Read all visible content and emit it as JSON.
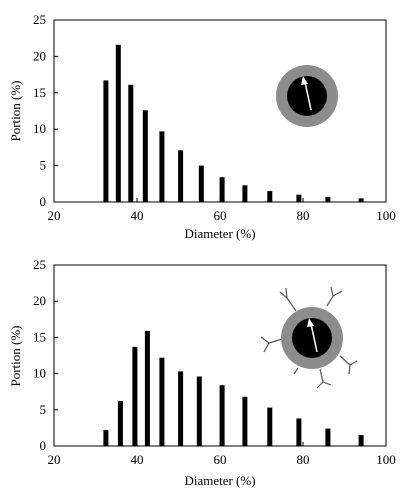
{
  "chart_data": [
    {
      "type": "bar",
      "title": "",
      "xlabel": "Diameter (%)",
      "ylabel": "Portion (%)",
      "xlim": [
        20,
        100
      ],
      "ylim": [
        0,
        25
      ],
      "xticks": [
        20,
        40,
        60,
        80,
        100
      ],
      "yticks": [
        0,
        5,
        10,
        15,
        20,
        25
      ],
      "grid": false,
      "inset_icon": "particle-bare-icon",
      "x": [
        32.5,
        35.5,
        38.5,
        42,
        46,
        50.5,
        55.5,
        60.5,
        66,
        72,
        79,
        86,
        94
      ],
      "values": [
        16.7,
        21.6,
        16.1,
        12.6,
        9.7,
        7.1,
        5.0,
        3.4,
        2.3,
        1.5,
        1.0,
        0.7,
        0.5
      ]
    },
    {
      "type": "bar",
      "title": "",
      "xlabel": "Diameter (%)",
      "ylabel": "Portion (%)",
      "xlim": [
        20,
        100
      ],
      "ylim": [
        0,
        25
      ],
      "xticks": [
        20,
        40,
        60,
        80,
        100
      ],
      "yticks": [
        0,
        5,
        10,
        15,
        20,
        25
      ],
      "grid": false,
      "inset_icon": "particle-grafted-icon",
      "x": [
        32.5,
        36,
        39.5,
        42.5,
        46,
        50.5,
        55,
        60.5,
        66,
        72,
        79,
        86,
        94
      ],
      "values": [
        2.2,
        6.2,
        13.7,
        15.9,
        12.2,
        10.3,
        9.6,
        8.4,
        6.8,
        5.3,
        3.8,
        2.4,
        1.5
      ]
    }
  ]
}
